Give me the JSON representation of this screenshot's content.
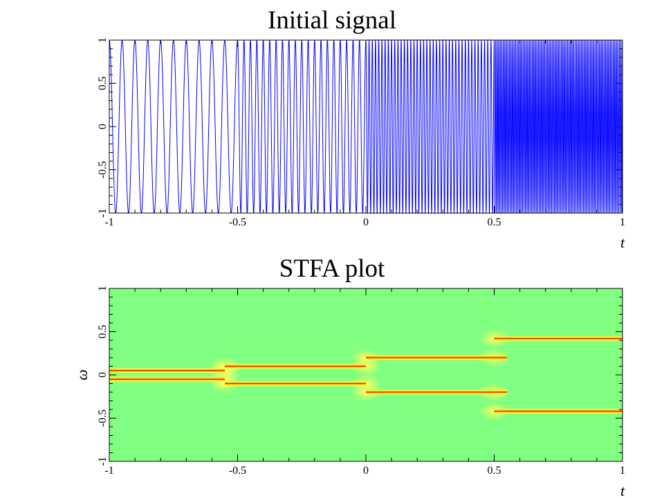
{
  "chart_data": [
    {
      "type": "line",
      "title": "Initial signal",
      "xlabel": "t",
      "ylabel": "",
      "xlim": [
        -1,
        1
      ],
      "ylim": [
        -1,
        1
      ],
      "xticks": [
        -1,
        -0.5,
        0,
        0.5,
        1
      ],
      "xtick_labels": [
        "-1",
        "-0.5",
        "0",
        "0.5",
        "1"
      ],
      "yticks": [
        -1,
        -0.5,
        0,
        0.5,
        1
      ],
      "ytick_labels": [
        "-1",
        "-0.5",
        "0",
        "0.5",
        "1"
      ],
      "line_color": "#0000ff",
      "grid": false,
      "series": [
        {
          "segments": [
            {
              "t_start": -1,
              "t_end": -0.5,
              "components": [
                {
                  "omega": 0.05,
                  "amplitude": 0.5
                },
                {
                  "omega": -0.05,
                  "amplitude": 0.5
                }
              ]
            },
            {
              "t_start": -0.5,
              "t_end": 0,
              "components": [
                {
                  "omega": 0.1,
                  "amplitude": 0.5
                },
                {
                  "omega": -0.1,
                  "amplitude": 0.5
                }
              ]
            },
            {
              "t_start": 0,
              "t_end": 0.5,
              "components": [
                {
                  "omega": 0.2,
                  "amplitude": 0.5
                },
                {
                  "omega": -0.2,
                  "amplitude": 0.5
                }
              ]
            },
            {
              "t_start": 0.5,
              "t_end": 1,
              "components": [
                {
                  "omega": 0.42,
                  "amplitude": 0.5
                },
                {
                  "omega": -0.42,
                  "amplitude": 0.5
                }
              ]
            }
          ]
        }
      ]
    },
    {
      "type": "heatmap",
      "title": "STFA plot",
      "xlabel": "t",
      "ylabel": "ω",
      "xlim": [
        -1,
        1
      ],
      "ylim": [
        -1,
        1
      ],
      "xticks": [
        -1,
        -0.5,
        0,
        0.5,
        1
      ],
      "xtick_labels": [
        "-1",
        "-0.5",
        "0",
        "0.5",
        "1"
      ],
      "yticks": [
        -1,
        -0.5,
        0,
        0.5,
        1
      ],
      "ytick_labels": [
        "-1",
        "-0.5",
        "0",
        "0.5",
        "1"
      ],
      "background_color": "#80ff80",
      "ridge_colors": [
        "#ffff40",
        "#ff9a00",
        "#c80000"
      ],
      "ridges": [
        {
          "t_start": -1,
          "t_end": -0.55,
          "omega": 0.05
        },
        {
          "t_start": -1,
          "t_end": -0.55,
          "omega": -0.05
        },
        {
          "t_start": -0.55,
          "t_end": 0,
          "omega": 0.1
        },
        {
          "t_start": -0.55,
          "t_end": 0,
          "omega": -0.1
        },
        {
          "t_start": 0,
          "t_end": 0.55,
          "omega": 0.2
        },
        {
          "t_start": 0,
          "t_end": 0.55,
          "omega": -0.2
        },
        {
          "t_start": 0.5,
          "t_end": 1,
          "omega": 0.42
        },
        {
          "t_start": 0.5,
          "t_end": 1,
          "omega": -0.42
        }
      ]
    }
  ]
}
